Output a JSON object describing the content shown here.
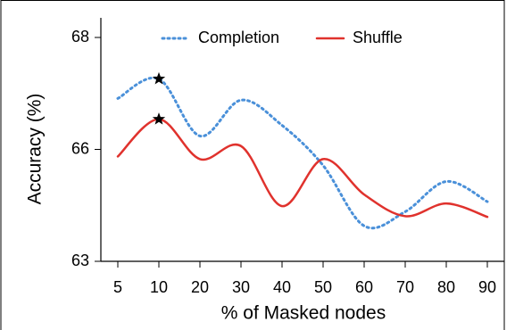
{
  "chart_data": {
    "type": "line",
    "x_label": "% of Masked nodes",
    "y_label": "Accuracy (%)",
    "categories": [
      "5",
      "10",
      "20",
      "30",
      "40",
      "50",
      "60",
      "70",
      "80",
      "90"
    ],
    "series": [
      {
        "name": "Completion",
        "color": "#4a90d9",
        "style": "dotted",
        "values": [
          66.91,
          67.26,
          66.24,
          66.88,
          66.43,
          65.57,
          63.95,
          64.33,
          65.14,
          64.6
        ]
      },
      {
        "name": "Shuffle",
        "color": "#e0322d",
        "style": "solid",
        "values": [
          65.81,
          66.54,
          65.74,
          66.06,
          64.48,
          65.74,
          64.79,
          64.21,
          64.55,
          64.19
        ]
      }
    ],
    "ylim": [
      63,
      68
    ],
    "yticks": [
      63,
      66,
      68
    ],
    "legend": "top"
  }
}
